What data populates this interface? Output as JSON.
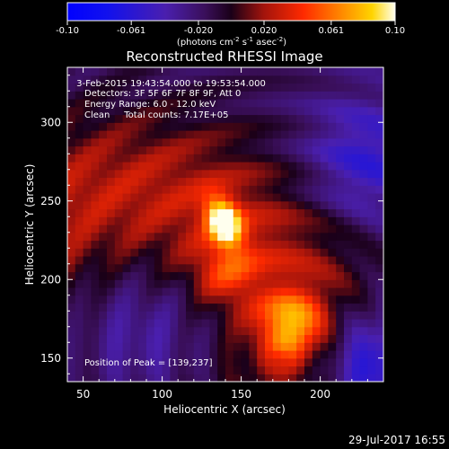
{
  "chart_data": {
    "type": "heatmap",
    "title": "Reconstructed RHESSI Image",
    "colorbar": {
      "min": -0.1,
      "max": 0.1,
      "ticks": [
        "-0.10",
        "-0.061",
        "-0.020",
        "0.020",
        "0.061",
        "0.10"
      ],
      "tick_values": [
        -0.1,
        -0.061,
        -0.02,
        0.02,
        0.061,
        0.1
      ],
      "label_main": "(photons cm",
      "label_sup1": "-2",
      "label_mid": " s",
      "label_sup2": "-1",
      "label_mid2": " asec",
      "label_sup3": "-2",
      "label_end": ")"
    },
    "xlabel": "Heliocentric X (arcsec)",
    "ylabel": "Heliocentric Y (arcsec)",
    "xlim": [
      40,
      240
    ],
    "ylim": [
      135,
      335
    ],
    "xticks": [
      50,
      100,
      150,
      200
    ],
    "yticks": [
      150,
      200,
      250,
      300
    ],
    "annotations": [
      " 3-Feb-2015 19:43:54.000 to 19:53:54.000",
      "Detectors: 3F 5F 6F 7F 8F 9F, Att 0",
      "Energy Range: 6.0 - 12.0 keV",
      "Clean     Total counts: 7.17E+05"
    ],
    "peak_label": "Position of Peak = [139,237]",
    "peak": [
      139,
      237
    ],
    "peak_value": 0.1,
    "secondary_sources": [
      {
        "x": 182,
        "y": 170,
        "value": 0.07
      },
      {
        "x": 140,
        "y": 205,
        "value": 0.035
      }
    ],
    "negative_regions": [
      {
        "x": 88,
        "y": 170,
        "value": -0.02
      },
      {
        "x": 228,
        "y": 275,
        "value": -0.04
      },
      {
        "x": 232,
        "y": 143,
        "value": -0.07
      }
    ],
    "grid": false,
    "legend": "none"
  },
  "footer": {
    "timestamp": "29-Jul-2017 16:55"
  }
}
